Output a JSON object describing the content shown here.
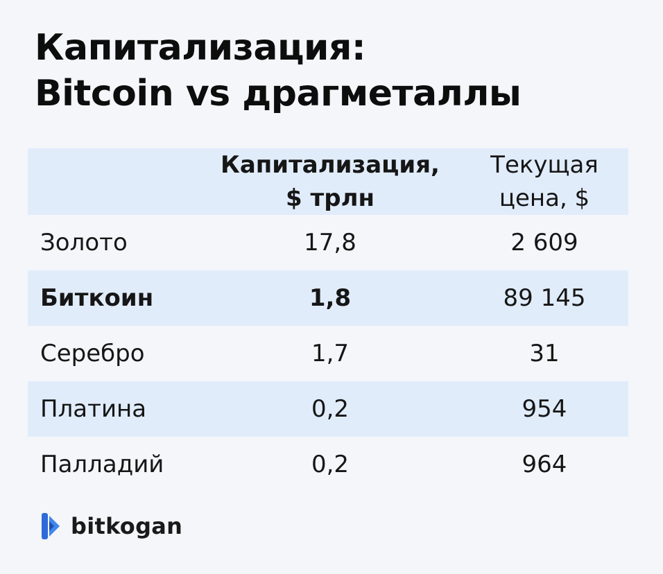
{
  "title": {
    "line1": "Капитализация:",
    "line2": "Bitcoin vs драгметаллы"
  },
  "chart_data": {
    "type": "table",
    "columns": [
      {
        "line1": "",
        "line2": ""
      },
      {
        "line1": "Капитализация,",
        "line2": "$ трлн"
      },
      {
        "line1": "Текущая",
        "line2": "цена, $"
      }
    ],
    "rows": [
      {
        "name": "Золото",
        "cap": "17,8",
        "price": "2 609",
        "highlight": false
      },
      {
        "name": "Биткоин",
        "cap": "1,8",
        "price": "89 145",
        "highlight": true
      },
      {
        "name": "Серебро",
        "cap": "1,7",
        "price": "31",
        "highlight": false
      },
      {
        "name": "Платина",
        "cap": "0,2",
        "price": "954",
        "highlight": false
      },
      {
        "name": "Палладий",
        "cap": "0,2",
        "price": "964",
        "highlight": false
      }
    ],
    "values": {
      "capitalization_trln_usd": [
        17.8,
        1.8,
        1.7,
        0.2,
        0.2
      ],
      "price_usd": [
        2609,
        89145,
        31,
        954,
        964
      ]
    }
  },
  "brand": {
    "name": "bitkogan",
    "icon": "bitkogan-logo-icon",
    "color": "#2f6bd8"
  },
  "colors": {
    "row_shade": "#e1ecfb",
    "background": "#f4f6f9"
  }
}
